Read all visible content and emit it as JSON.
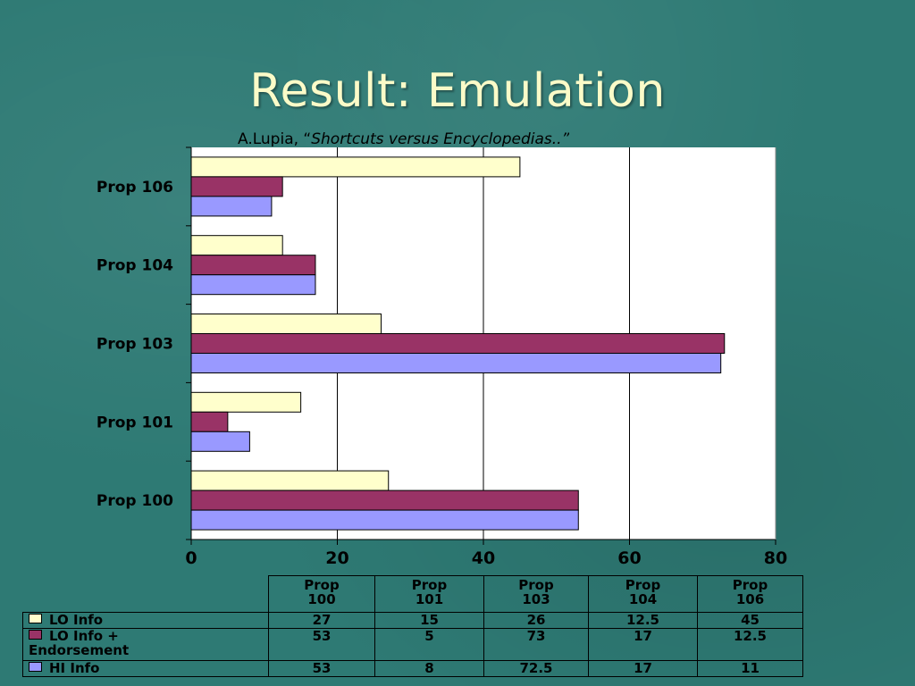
{
  "slide": {
    "title": "Result: Emulation",
    "citation_author": "A.Lupia, “",
    "citation_title": "Shortcuts versus Encyclopedias..”"
  },
  "colors": {
    "lo_info": "#ffffcc",
    "lo_info_endorsement": "#993366",
    "hi_info": "#9999ff"
  },
  "chart_data": {
    "type": "bar",
    "orientation": "horizontal",
    "categories": [
      "Prop 100",
      "Prop 101",
      "Prop 103",
      "Prop 104",
      "Prop 106"
    ],
    "series": [
      {
        "name": "LO Info",
        "values": [
          27,
          15,
          26,
          12.5,
          45
        ],
        "color": "#ffffcc"
      },
      {
        "name": "LO Info + Endorsement",
        "values": [
          53,
          5,
          73,
          17,
          12.5
        ],
        "color": "#993366"
      },
      {
        "name": "HI Info",
        "values": [
          53,
          8,
          72.5,
          17,
          11
        ],
        "color": "#9999ff"
      }
    ],
    "xlim": [
      0,
      80
    ],
    "xticks": [
      0,
      20,
      40,
      60,
      80
    ],
    "grid": "vertical",
    "legend": "data table below chart",
    "table": {
      "headers": [
        [
          "Prop",
          "100"
        ],
        [
          "Prop",
          "101"
        ],
        [
          "Prop",
          "103"
        ],
        [
          "Prop",
          "104"
        ],
        [
          "Prop",
          "106"
        ]
      ],
      "rows": [
        {
          "label_lines": [
            "LO Info"
          ],
          "values": [
            "27",
            "15",
            "26",
            "12.5",
            "45"
          ]
        },
        {
          "label_lines": [
            "LO Info +",
            "Endorsement"
          ],
          "values": [
            "53",
            "5",
            "73",
            "17",
            "12.5"
          ]
        },
        {
          "label_lines": [
            "HI Info"
          ],
          "values": [
            "53",
            "8",
            "72.5",
            "17",
            "11"
          ]
        }
      ]
    }
  }
}
